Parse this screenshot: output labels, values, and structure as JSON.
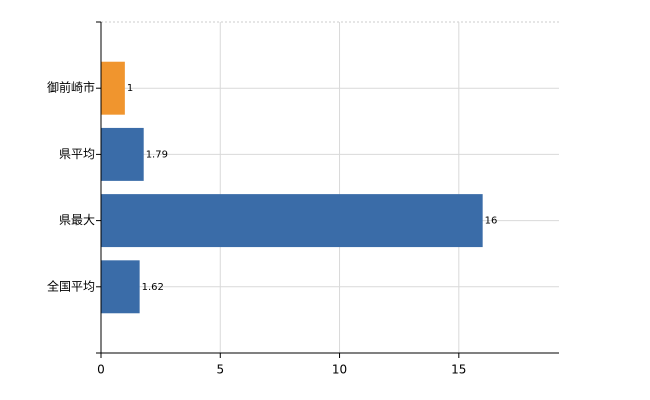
{
  "chart_data": {
    "type": "hbar",
    "categories": [
      "御前崎市",
      "県平均",
      "県最大",
      "全国平均"
    ],
    "values": [
      1,
      1.79,
      16,
      1.62
    ],
    "colors": [
      "#f0952e",
      "#3a6ca8",
      "#3a6ca8",
      "#3a6ca8"
    ],
    "xlim": [
      0,
      19.2
    ],
    "xticks": [
      0,
      5,
      10,
      15
    ],
    "grid": true
  }
}
